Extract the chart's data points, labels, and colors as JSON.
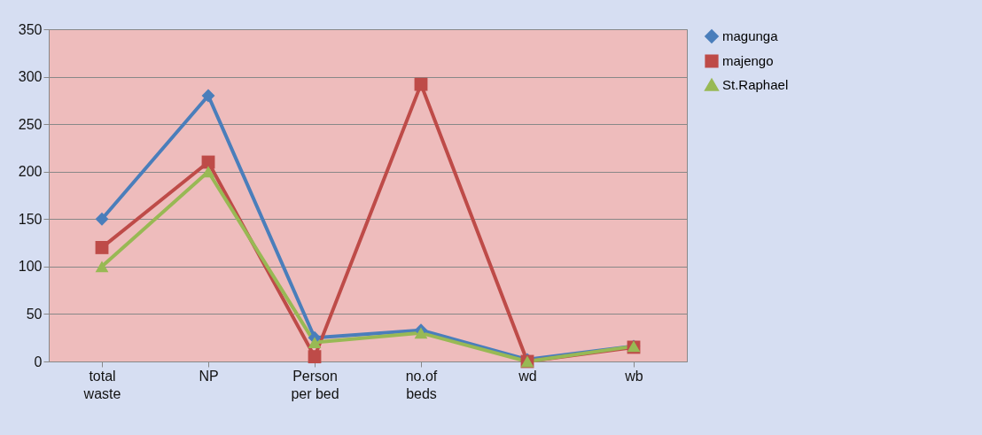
{
  "chart_data": {
    "type": "line",
    "categories": [
      "total waste",
      "NP",
      "Person per bed",
      "no.of beds",
      "wd",
      "wb"
    ],
    "series": [
      {
        "name": "magunga",
        "color": "#4a7ebb",
        "marker": "diamond",
        "values": [
          150,
          280,
          25,
          33,
          2,
          16
        ]
      },
      {
        "name": "majengo",
        "color": "#be4b48",
        "marker": "square",
        "values": [
          120,
          210,
          5,
          292,
          0,
          15
        ]
      },
      {
        "name": "St.Raphael",
        "color": "#98b954",
        "marker": "triangle",
        "values": [
          100,
          200,
          20,
          30,
          0,
          16
        ]
      }
    ],
    "ylim": [
      0,
      350
    ],
    "yticks": [
      0,
      50,
      100,
      150,
      200,
      250,
      300,
      350
    ],
    "grid": "y",
    "legend": "right",
    "line_style": "solid"
  }
}
